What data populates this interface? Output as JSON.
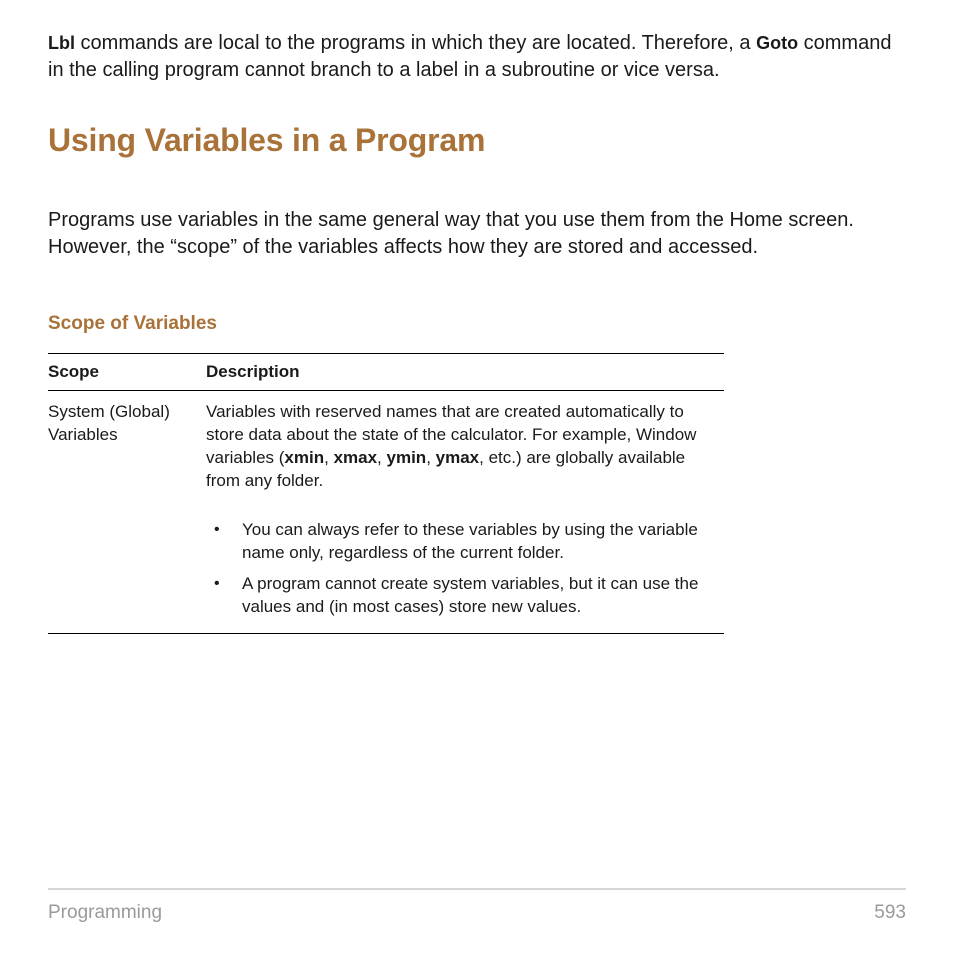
{
  "colors": {
    "heading": "#a87238",
    "text": "#1a1a1a",
    "footer_rule": "#d6d6d6",
    "footer_text": "#9a9a9a",
    "background": "#ffffff"
  },
  "typography": {
    "body_fontsize_pt": 15,
    "h1_fontsize_pt": 24,
    "h2_fontsize_pt": 14,
    "table_fontsize_pt": 13,
    "font_family": "Arial"
  },
  "intro": {
    "cmd1": "Lbl",
    "text1": " commands are local to the programs in which they are located. Therefore, a ",
    "cmd2": "Goto",
    "text2": " command in the calling program cannot branch to a label in a subroutine or vice versa."
  },
  "heading": "Using Variables in a Program",
  "lead": "Programs use variables in the same general way that you use them from the Home screen. However, the “scope” of the variables affects how they are stored and accessed.",
  "subheading": "Scope of Variables",
  "table": {
    "columns": [
      "Scope",
      "Description"
    ],
    "row": {
      "scope": "System (Global) Variables",
      "desc_pre": "Variables with reserved names that are created automatically to store data about the state of the calculator. For example, Window variables (",
      "b1": "xmin",
      "sep1": ", ",
      "b2": "xmax",
      "sep2": ", ",
      "b3": "ymin",
      "sep3": ", ",
      "b4": "ymax",
      "desc_post": ", etc.) are globally available from any folder.",
      "bullets": [
        "You can always refer to these variables by using the variable name only, regardless of the current folder.",
        "A program cannot create system variables, but it can use the values and (in most cases) store new values."
      ]
    }
  },
  "footer": {
    "section": "Programming",
    "page": "593"
  }
}
